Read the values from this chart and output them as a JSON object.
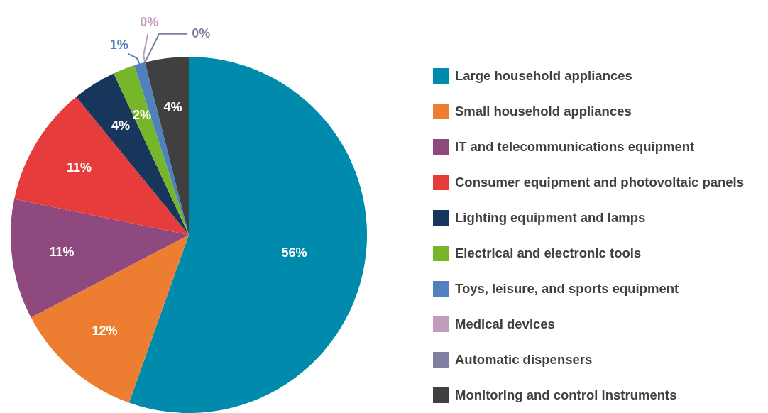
{
  "chart_data": {
    "type": "pie",
    "categories": [
      "Large household appliances",
      "Small household appliances",
      "IT and telecommunications equipment",
      "Consumer equipment and photovoltaic panels",
      "Lighting equipment and lamps",
      "Electrical and electronic tools",
      "Toys, leisure, and sports equipment",
      "Medical devices",
      "Automatic dispensers",
      "Monitoring and control instruments"
    ],
    "values": [
      56,
      12,
      11,
      11,
      4,
      2,
      1,
      0,
      0,
      4
    ],
    "colors": [
      "#008aab",
      "#ed7d31",
      "#8e4a7e",
      "#e63c3c",
      "#17365c",
      "#77b52a",
      "#4f81bd",
      "#c39bbd",
      "#8080a0",
      "#404040"
    ],
    "value_labels": [
      "56%",
      "12%",
      "11%",
      "11%",
      "4%",
      "2%",
      "1%",
      "0%",
      "0%",
      "4%"
    ],
    "legend": "right"
  }
}
